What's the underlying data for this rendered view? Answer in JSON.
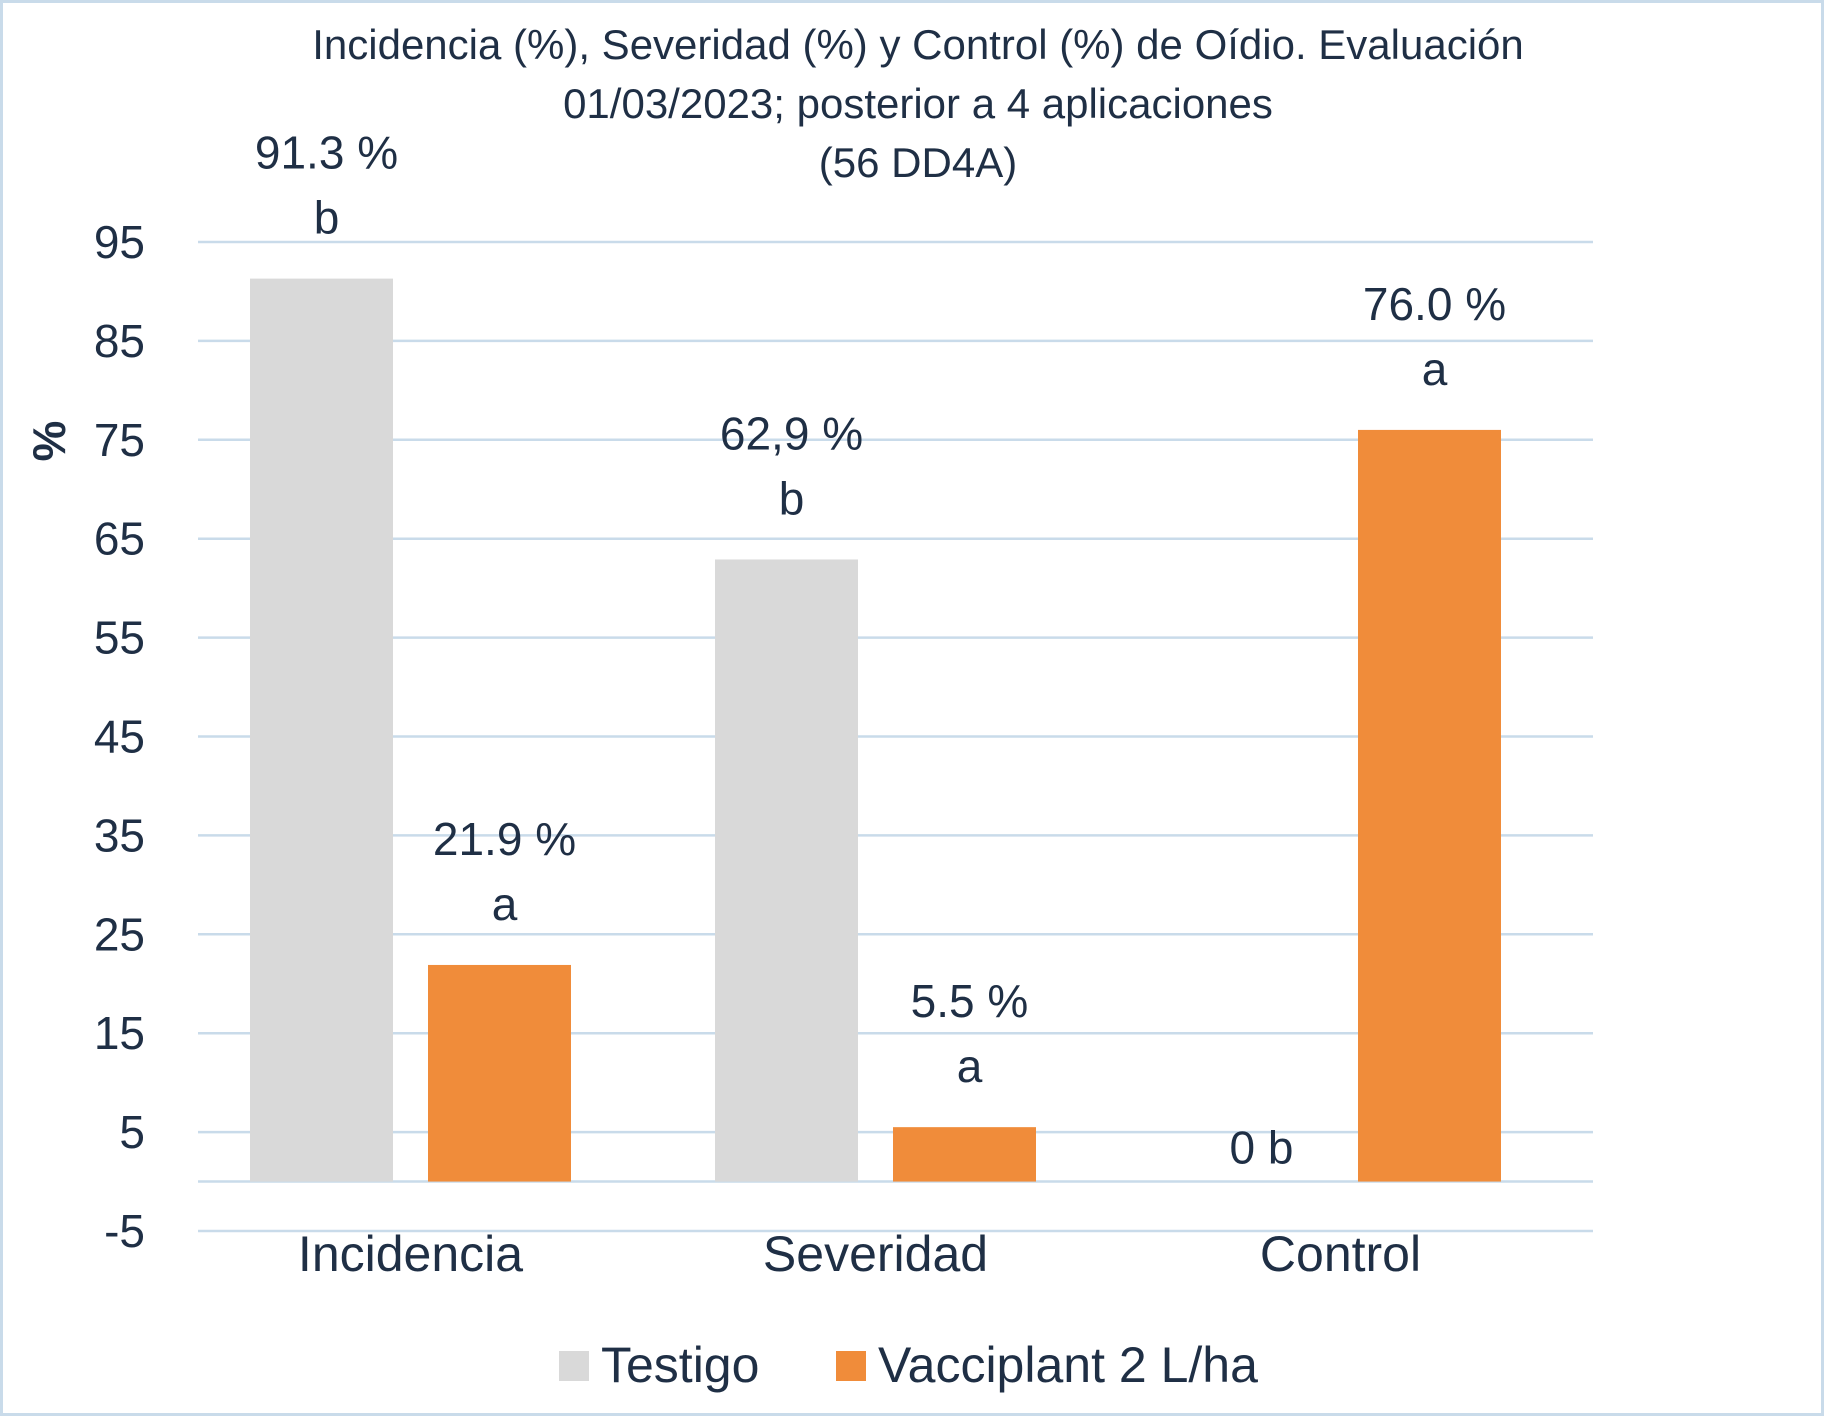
{
  "chart_data": {
    "type": "bar",
    "title_lines": [
      "Incidencia (%), Severidad (%) y Control (%) de Oídio. Evaluación",
      "01/03/2023; posterior a 4 aplicaciones",
      "(56 DD4A)"
    ],
    "xlabel": "",
    "ylabel": "%",
    "ylim": [
      -5,
      95
    ],
    "yticks": [
      95,
      85,
      75,
      65,
      55,
      45,
      35,
      25,
      15,
      5,
      -5
    ],
    "grid": true,
    "legend_position": "bottom",
    "categories": [
      "Incidencia",
      "Severidad",
      "Control"
    ],
    "series": [
      {
        "name": "Testigo",
        "color": "#d9d9d9",
        "values": [
          91.3,
          62.9,
          0
        ],
        "value_labels": [
          "91.3 %",
          "62,9 %",
          "0"
        ],
        "letters": [
          "b",
          "b",
          "b"
        ]
      },
      {
        "name": "Vacciplant 2 L/ha",
        "color": "#f08c3a",
        "values": [
          21.9,
          5.5,
          76.0
        ],
        "value_labels": [
          "21.9 %",
          "5.5 %",
          "76.0 %"
        ],
        "letters": [
          "a",
          "a",
          "a"
        ]
      }
    ]
  }
}
